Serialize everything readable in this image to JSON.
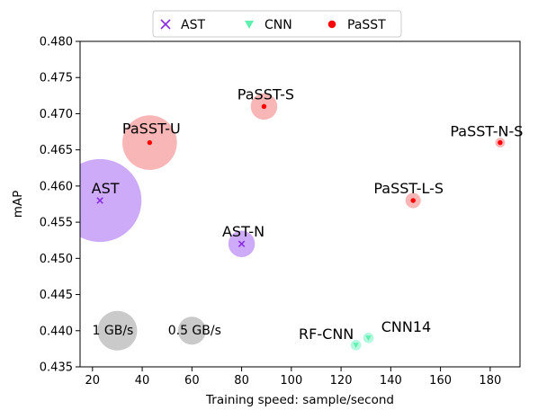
{
  "chart_data": {
    "type": "scatter",
    "xlabel": "Training speed: sample/second",
    "ylabel": "mAP",
    "xlim": [
      15,
      192
    ],
    "ylim": [
      0.435,
      0.48
    ],
    "xticks": [
      20,
      40,
      60,
      80,
      100,
      120,
      140,
      160,
      180
    ],
    "yticks": [
      0.435,
      0.44,
      0.445,
      0.45,
      0.455,
      0.46,
      0.465,
      0.47,
      0.475,
      0.48
    ],
    "ytick_labels": [
      "0.435",
      "0.440",
      "0.445",
      "0.450",
      "0.455",
      "0.460",
      "0.465",
      "0.470",
      "0.475",
      "0.480"
    ],
    "legend": {
      "placement": "top-center-outside",
      "entries": [
        {
          "label": "AST",
          "marker": "x",
          "color": "#8a2be2"
        },
        {
          "label": "CNN",
          "marker": "triangle-down",
          "color": "#5ff0b0"
        },
        {
          "label": "PaSST",
          "marker": "circle",
          "color": "#ff0000"
        }
      ]
    },
    "bubble_colors": {
      "AST": "#b37ef5",
      "CNN": "#8ef5cf",
      "PaSST": "#f58f8f",
      "reference": "#b3b3b3"
    },
    "points": [
      {
        "label": "AST",
        "family": "AST",
        "x": 23,
        "y": 0.458,
        "memory_gb_s": 4.4
      },
      {
        "label": "AST-N",
        "family": "AST",
        "x": 80,
        "y": 0.452,
        "memory_gb_s": 0.45
      },
      {
        "label": "PaSST-U",
        "family": "PaSST",
        "x": 43,
        "y": 0.466,
        "memory_gb_s": 1.9
      },
      {
        "label": "PaSST-S",
        "family": "PaSST",
        "x": 89,
        "y": 0.471,
        "memory_gb_s": 0.45
      },
      {
        "label": "PaSST-L-S",
        "family": "PaSST",
        "x": 149,
        "y": 0.458,
        "memory_gb_s": 0.15
      },
      {
        "label": "PaSST-N-S",
        "family": "PaSST",
        "x": 184,
        "y": 0.466,
        "memory_gb_s": 0.06
      },
      {
        "label": "RF-CNN",
        "family": "CNN",
        "x": 126,
        "y": 0.438,
        "memory_gb_s": 0.07
      },
      {
        "label": "CNN14",
        "family": "CNN",
        "x": 131,
        "y": 0.439,
        "memory_gb_s": 0.07
      }
    ],
    "size_reference": [
      {
        "label": "1 GB/s",
        "x": 30,
        "y": 0.44,
        "memory_gb_s": 1.0
      },
      {
        "label": "0.5 GB/s",
        "x": 60,
        "y": 0.44,
        "memory_gb_s": 0.5
      }
    ]
  }
}
